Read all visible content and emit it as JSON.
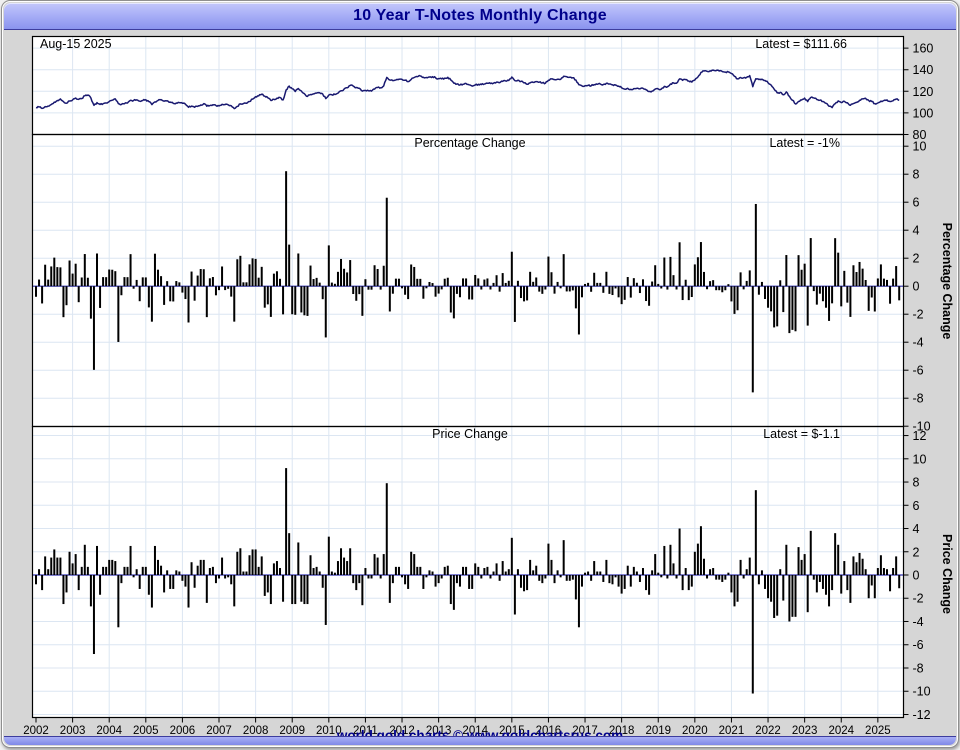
{
  "window": {
    "title": "10 Year T-Notes Monthly Change",
    "footer": "world gold charts © www.goldchartsrus.com"
  },
  "colors": {
    "title_text": "#00008b",
    "footer_text": "#00008b",
    "plot_bg": "#ffffff",
    "grid": "#dce6f2",
    "frame": "#000000",
    "bar": "#000000",
    "price_line": "#191970",
    "zero_line": "#3535b4",
    "label_text": "#000000",
    "margin_bg": "#d6d6d6"
  },
  "chart_data": {
    "type": "combo",
    "x_start": {
      "year": 2002,
      "month": 1
    },
    "x_end": {
      "year": 2025,
      "month": 8
    },
    "x_tick_years": [
      2002,
      2003,
      2004,
      2005,
      2006,
      2007,
      2008,
      2009,
      2010,
      2011,
      2012,
      2013,
      2014,
      2015,
      2016,
      2017,
      2018,
      2019,
      2020,
      2021,
      2022,
      2023,
      2024,
      2025
    ],
    "panels": [
      {
        "id": "price",
        "type": "line",
        "label_left": "Aug-15  2025",
        "label_right": "Latest = $111.66",
        "ylabel": "",
        "yticks": [
          160,
          140,
          120,
          100,
          80
        ],
        "ylim": [
          80,
          166
        ]
      },
      {
        "id": "pct",
        "type": "bar",
        "label_center": "Percentage Change",
        "label_right": "Latest = -1%",
        "ylabel": "Percentage Change",
        "yticks": [
          10,
          8,
          6,
          4,
          2,
          0,
          -2,
          -4,
          -6,
          -8,
          -10
        ],
        "ylim": [
          -10.4,
          10.7
        ]
      },
      {
        "id": "chg",
        "type": "bar",
        "label_center": "Price Change",
        "label_right": "Latest = $-1.1",
        "ylabel": "Price Change",
        "yticks": [
          12,
          10,
          8,
          6,
          4,
          2,
          0,
          -2,
          -4,
          -6,
          -8,
          -10,
          -12
        ],
        "ylim": [
          -12.2,
          12.1
        ]
      }
    ],
    "latest": {
      "price": 111.66,
      "pct_change": -1.0,
      "price_change": -1.1
    },
    "prev_close": 105.8,
    "monthly_price": [
      105.0,
      105.5,
      104.2,
      105.8,
      106.3,
      107.8,
      110.0,
      111.5,
      113.0,
      110.5,
      109.0,
      111.0,
      112.0,
      113.8,
      112.5,
      113.2,
      115.8,
      116.5,
      113.8,
      107.0,
      109.5,
      107.8,
      108.5,
      109.2,
      110.5,
      111.8,
      113.0,
      108.5,
      107.8,
      108.5,
      109.2,
      111.7,
      111.5,
      112.0,
      110.8,
      111.5,
      112.2,
      110.5,
      107.7,
      110.2,
      111.5,
      112.3,
      110.8,
      111.2,
      110.0,
      108.8,
      109.2,
      109.5,
      109.0,
      108.0,
      105.2,
      106.3,
      105.2,
      106.0,
      107.3,
      108.6,
      106.2,
      106.8,
      107.5,
      106.8,
      106.5,
      108.0,
      107.7,
      107.5,
      106.7,
      104.0,
      106.0,
      108.3,
      108.6,
      108.9,
      110.6,
      112.8,
      115.0,
      115.7,
      117.3,
      115.5,
      114.0,
      111.5,
      112.5,
      113.7,
      114.3,
      112.0,
      121.2,
      124.8,
      122.3,
      119.8,
      122.6,
      120.3,
      117.8,
      115.3,
      117.0,
      117.6,
      118.3,
      118.6,
      117.5,
      113.2,
      116.5,
      116.8,
      117.0,
      118.2,
      120.5,
      122.0,
      123.2,
      125.5,
      124.8,
      123.5,
      122.8,
      120.2,
      120.8,
      120.5,
      120.2,
      122.0,
      123.5,
      123.2,
      125.0,
      132.9,
      130.5,
      129.8,
      130.5,
      131.2,
      131.0,
      130.2,
      129.0,
      131.0,
      132.8,
      133.5,
      134.2,
      133.0,
      132.8,
      133.2,
      133.5,
      132.5,
      131.8,
      131.5,
      132.2,
      133.0,
      130.5,
      127.5,
      126.8,
      125.8,
      126.5,
      127.2,
      126.0,
      124.8,
      125.8,
      126.5,
      126.2,
      126.8,
      127.5,
      127.2,
      127.5,
      128.5,
      128.0,
      129.2,
      129.5,
      130.0,
      133.2,
      129.8,
      130.3,
      129.2,
      127.8,
      126.5,
      127.8,
      128.2,
      129.0,
      128.5,
      127.8,
      127.5,
      130.2,
      131.5,
      130.8,
      131.2,
      131.0,
      134.0,
      133.5,
      133.0,
      132.6,
      130.5,
      126.0,
      125.0,
      125.2,
      125.5,
      125.0,
      126.2,
      126.5,
      126.8,
      126.2,
      127.5,
      126.8,
      126.0,
      125.8,
      124.8,
      123.2,
      122.0,
      122.8,
      121.8,
      122.5,
      122.8,
      122.2,
      122.8,
      121.5,
      119.8,
      120.2,
      122.0,
      122.2,
      122.0,
      124.5,
      124.2,
      126.8,
      127.8,
      127.5,
      131.5,
      130.2,
      130.8,
      129.5,
      128.5,
      130.5,
      133.2,
      137.4,
      138.8,
      138.5,
      139.0,
      139.6,
      139.2,
      138.8,
      138.2,
      137.8,
      138.0,
      136.5,
      133.8,
      131.5,
      132.8,
      132.5,
      133.0,
      134.5,
      124.3,
      131.6,
      130.8,
      131.2,
      130.0,
      128.0,
      125.7,
      122.0,
      118.5,
      119.0,
      116.8,
      119.4,
      115.4,
      111.8,
      108.2,
      110.6,
      111.9,
      113.7,
      110.5,
      114.3,
      113.9,
      112.4,
      111.8,
      110.6,
      108.9,
      106.2,
      104.9,
      108.5,
      111.1,
      109.5,
      110.7,
      109.4,
      107.0,
      108.6,
      109.7,
      111.6,
      113.0,
      113.5,
      111.5,
      110.6,
      108.6,
      109.2,
      110.9,
      111.5,
      112.0,
      110.6,
      111.2,
      112.8,
      111.66
    ]
  }
}
